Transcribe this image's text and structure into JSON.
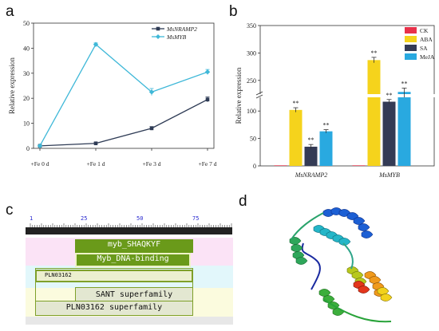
{
  "panels": {
    "a": "a",
    "b": "b",
    "c": "c",
    "d": "d"
  },
  "chart_data": [
    {
      "type": "line",
      "panel": "a",
      "title": "",
      "xlabel": "",
      "ylabel": "Relative expression",
      "categories": [
        "+Fe 0 d",
        "+Fe 1 d",
        "+Fe 3 d",
        "+Fe 7 d"
      ],
      "ylim": [
        0,
        50
      ],
      "yticks": [
        0,
        10,
        20,
        30,
        40,
        50
      ],
      "legend_position": "top-right",
      "series": [
        {
          "name": "MsNRAMP2",
          "values": [
            1.0,
            2.0,
            8.0,
            19.5
          ],
          "errors": [
            0.3,
            0.3,
            0.7,
            1.0
          ],
          "marker": "square",
          "color": "#2e3b55"
        },
        {
          "name": "MsMYB",
          "values": [
            1.0,
            41.5,
            22.5,
            30.5
          ],
          "errors": [
            0.3,
            0.6,
            1.4,
            1.0
          ],
          "marker": "diamond",
          "color": "#3fb8d8"
        }
      ]
    },
    {
      "type": "bar",
      "panel": "b",
      "title": "",
      "xlabel": "",
      "ylabel": "Relative expression",
      "categories": [
        "MsNRAMP2",
        "MsMYB"
      ],
      "ylim": [
        0,
        350
      ],
      "yticks": [
        0,
        50,
        100,
        250,
        300,
        350
      ],
      "axis_break": [
        125,
        225
      ],
      "legend_position": "top-right",
      "series": [
        {
          "name": "CK",
          "values": [
            1,
            1
          ],
          "errors": [
            0,
            0
          ],
          "color": "#e8314a"
        },
        {
          "name": "ABA",
          "values": [
            102,
            287
          ],
          "errors": [
            4,
            5
          ],
          "color": "#f5d31c"
        },
        {
          "name": "SA",
          "values": [
            35,
            117
          ],
          "errors": [
            4,
            4
          ],
          "color": "#343b55"
        },
        {
          "name": "MeJA",
          "values": [
            63,
            229
          ],
          "errors": [
            3,
            7
          ],
          "color": "#29a9e0"
        }
      ],
      "annotations": [
        "**",
        "**",
        "**",
        "**",
        "**",
        "**"
      ]
    }
  ],
  "domains": {
    "ruler_ticks": [
      "1",
      "25",
      "50",
      "75"
    ],
    "items": [
      "myb_SHAQKYF",
      "Myb_DNA-binding",
      "PLN03162",
      "SANT superfamily",
      "PLN03162 superfamily"
    ]
  }
}
